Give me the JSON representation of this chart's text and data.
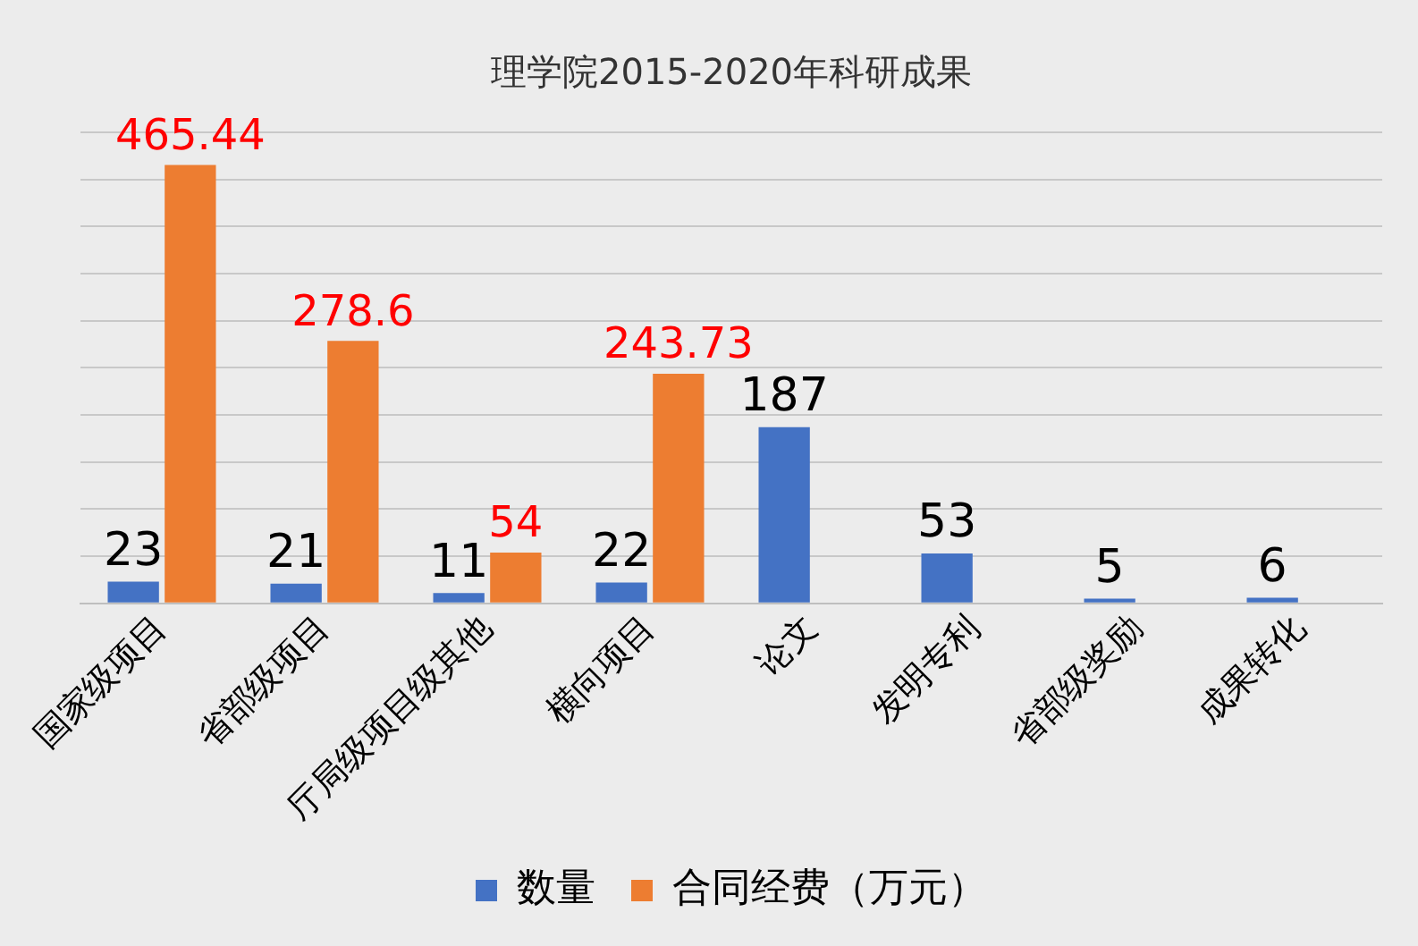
{
  "chart_data": {
    "type": "bar",
    "title": "理学院2015-2020年科研成果",
    "categories": [
      "国家级项目",
      "省部级项目",
      "厅局级项目级其他",
      "横向项目",
      "论文",
      "发明专利",
      "省部级奖励",
      "成果转化"
    ],
    "series": [
      {
        "name": "数量",
        "color": "#4472c4",
        "values": [
          23,
          21,
          11,
          22,
          187,
          53,
          5,
          6
        ]
      },
      {
        "name": "合同经费（万元）",
        "color": "#ed7d31",
        "values": [
          465.44,
          278.6,
          54,
          243.73,
          null,
          null,
          null,
          null
        ]
      }
    ],
    "data_labels": true,
    "grid": "y",
    "legend": "bottom",
    "tick_labels": "x"
  }
}
